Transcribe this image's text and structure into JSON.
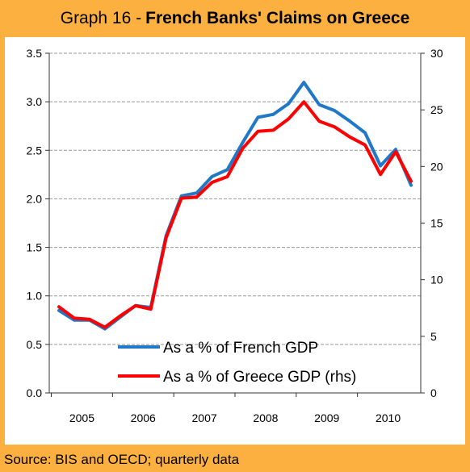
{
  "header": {
    "title_prefix": "Graph 16 - ",
    "title_main": "French Banks' Claims on Greece"
  },
  "footer": {
    "source": "Source: BIS and OECD; quarterly data"
  },
  "colors": {
    "background": "#fcb040",
    "series_french_gdp": "#1f78c8",
    "series_greece_gdp": "#ff0000",
    "gridline": "#999999"
  },
  "chart_data": {
    "type": "line",
    "title": "French Banks' Claims on Greece",
    "x_tick_labels": [
      "2005",
      "2006",
      "2007",
      "2008",
      "2009",
      "2010"
    ],
    "quarters": [
      "2005Q1",
      "2005Q2",
      "2005Q3",
      "2005Q4",
      "2006Q1",
      "2006Q2",
      "2006Q3",
      "2006Q4",
      "2007Q1",
      "2007Q2",
      "2007Q3",
      "2007Q4",
      "2008Q1",
      "2008Q2",
      "2008Q3",
      "2008Q4",
      "2009Q1",
      "2009Q2",
      "2009Q3",
      "2009Q4",
      "2010Q1",
      "2010Q2",
      "2010Q3",
      "2010Q4"
    ],
    "y_left": {
      "min": 0,
      "max": 3.5,
      "ticks": [
        "0.0",
        "0.5",
        "1.0",
        "1.5",
        "2.0",
        "2.5",
        "3.0",
        "3.5"
      ]
    },
    "y_right": {
      "min": 0,
      "max": 30,
      "ticks": [
        "0",
        "5",
        "10",
        "15",
        "20",
        "25",
        "30"
      ]
    },
    "grid": true,
    "legend_position": "bottom-center",
    "series": [
      {
        "name": "As a % of French GDP",
        "axis": "left",
        "values": [
          0.85,
          0.75,
          0.75,
          0.66,
          0.78,
          0.9,
          0.88,
          1.62,
          2.03,
          2.06,
          2.23,
          2.3,
          2.58,
          2.84,
          2.87,
          2.98,
          3.2,
          2.97,
          2.91,
          2.8,
          2.68,
          2.34,
          2.51,
          2.14
        ]
      },
      {
        "name": "As a % of Greece GDP (rhs)",
        "axis": "right",
        "values": [
          7.6,
          6.6,
          6.5,
          5.8,
          6.8,
          7.7,
          7.4,
          13.7,
          17.2,
          17.3,
          18.6,
          19.1,
          21.6,
          23.1,
          23.2,
          24.2,
          25.7,
          24.0,
          23.5,
          22.6,
          21.9,
          19.3,
          21.3,
          18.7
        ]
      }
    ]
  }
}
